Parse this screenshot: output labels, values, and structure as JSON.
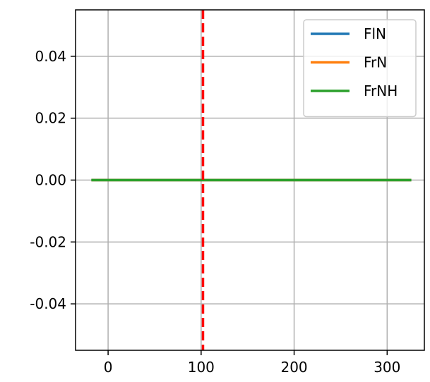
{
  "chart_data": {
    "type": "line",
    "title": "",
    "xlabel": "",
    "ylabel": "",
    "xlim": [
      -35,
      340
    ],
    "ylim": [
      -0.055,
      0.055
    ],
    "x_ticks": [
      0,
      100,
      200,
      300
    ],
    "x_tick_labels": [
      "0",
      "100",
      "200",
      "300"
    ],
    "y_ticks": [
      -0.04,
      -0.02,
      0.0,
      0.02,
      0.04
    ],
    "y_tick_labels": [
      "-0.04",
      "-0.02",
      "0.00",
      "0.02",
      "0.04"
    ],
    "grid": true,
    "legend_position": "top-right",
    "series": [
      {
        "name": "FlN",
        "color": "#1f77b4",
        "x": [
          -18,
          326
        ],
        "values": [
          0,
          0
        ]
      },
      {
        "name": "FrN",
        "color": "#ff7f0e",
        "x": [
          -18,
          326
        ],
        "values": [
          0,
          0
        ]
      },
      {
        "name": "FrNH",
        "color": "#2ca02c",
        "x": [
          -18,
          326
        ],
        "values": [
          0,
          0
        ]
      }
    ],
    "vertical_line": {
      "x": 102,
      "color": "#ff0000",
      "style": "dashed"
    }
  }
}
